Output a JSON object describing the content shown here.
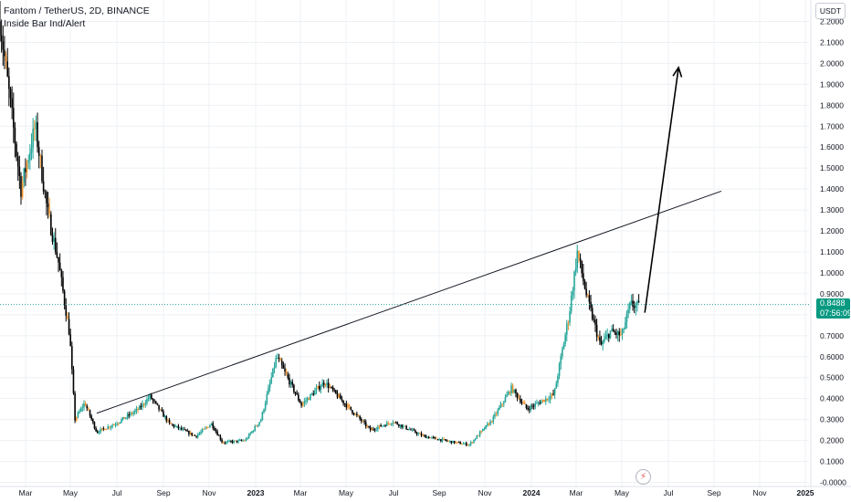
{
  "header": {
    "symbol_line": "Fantom / TetherUS, 2D, BINANCE",
    "indicator": "Inside Bar Ind/Alert"
  },
  "currency_badge": "USDT",
  "price_tag": {
    "value": "0.8488",
    "countdown": "07:56:09",
    "color": "#089981"
  },
  "flash_icon": "flash-icon",
  "colors": {
    "up": "#26a69a",
    "down": "#000000",
    "inside_bar": "#f0932b",
    "trendline": "#131722",
    "grid": "#eef0f4"
  },
  "chart_data": {
    "type": "candlestick",
    "y_ticks": [
      "-0.0000",
      "0.1000",
      "0.2000",
      "0.3000",
      "0.4000",
      "0.5000",
      "0.6000",
      "0.7000",
      "0.8000",
      "0.9000",
      "1.0000",
      "1.1000",
      "1.2000",
      "1.3000",
      "1.4000",
      "1.5000",
      "1.6000",
      "1.7000",
      "1.8000",
      "1.9000",
      "2.0000",
      "2.1000",
      "2.2000"
    ],
    "ylim": [
      0,
      2.2
    ],
    "x_ticks": [
      "Mar",
      "May",
      "Jul",
      "Sep",
      "Nov",
      "2023",
      "Mar",
      "May",
      "Jul",
      "Sep",
      "Nov",
      "2024",
      "Mar",
      "May",
      "Jul",
      "Sep",
      "Nov",
      "2025"
    ],
    "x_range": [
      "2022-02-01",
      "2025-01-15"
    ],
    "grid": true,
    "last_price": 0.8488,
    "price_path": [
      [
        "2022-02-01",
        2.2
      ],
      [
        "2022-02-15",
        1.8
      ],
      [
        "2022-03-01",
        1.4
      ],
      [
        "2022-03-20",
        1.7
      ],
      [
        "2022-04-05",
        1.3
      ],
      [
        "2022-04-20",
        1.05
      ],
      [
        "2022-05-05",
        0.7
      ],
      [
        "2022-05-12",
        0.3
      ],
      [
        "2022-05-25",
        0.38
      ],
      [
        "2022-06-10",
        0.24
      ],
      [
        "2022-07-05",
        0.28
      ],
      [
        "2022-08-05",
        0.35
      ],
      [
        "2022-08-20",
        0.41
      ],
      [
        "2022-09-15",
        0.28
      ],
      [
        "2022-10-20",
        0.22
      ],
      [
        "2022-11-10",
        0.28
      ],
      [
        "2022-11-25",
        0.19
      ],
      [
        "2022-12-25",
        0.2
      ],
      [
        "2023-01-15",
        0.3
      ],
      [
        "2023-02-05",
        0.6
      ],
      [
        "2023-02-15",
        0.53
      ],
      [
        "2023-03-10",
        0.37
      ],
      [
        "2023-04-10",
        0.48
      ],
      [
        "2023-04-25",
        0.42
      ],
      [
        "2023-06-10",
        0.25
      ],
      [
        "2023-07-10",
        0.29
      ],
      [
        "2023-08-20",
        0.22
      ],
      [
        "2023-10-01",
        0.19
      ],
      [
        "2023-10-20",
        0.18
      ],
      [
        "2023-11-20",
        0.3
      ],
      [
        "2023-12-15",
        0.45
      ],
      [
        "2024-01-05",
        0.35
      ],
      [
        "2024-02-10",
        0.42
      ],
      [
        "2024-03-01",
        0.8
      ],
      [
        "2024-03-12",
        1.1
      ],
      [
        "2024-03-25",
        0.88
      ],
      [
        "2024-04-12",
        0.65
      ],
      [
        "2024-04-25",
        0.72
      ],
      [
        "2024-05-10",
        0.7
      ],
      [
        "2024-05-22",
        0.85
      ],
      [
        "2024-06-01",
        0.84
      ]
    ],
    "trendline": {
      "from": [
        "2022-06-10",
        0.33
      ],
      "to": [
        "2024-09-20",
        1.39
      ]
    },
    "arrow": {
      "from": [
        "2024-06-10",
        0.81
      ],
      "to": [
        "2024-07-25",
        1.98
      ]
    }
  }
}
